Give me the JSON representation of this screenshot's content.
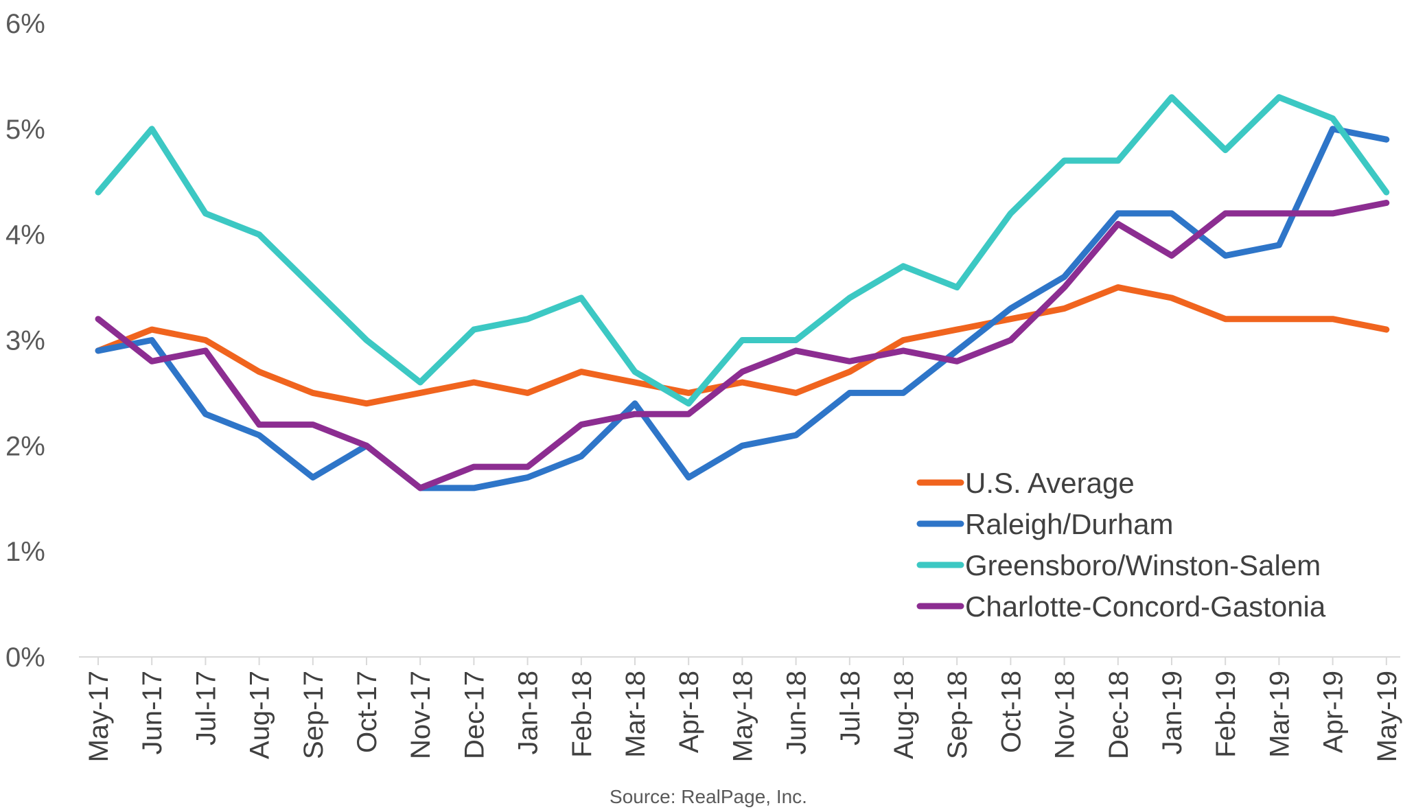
{
  "chart_data": {
    "type": "line",
    "title": "",
    "xlabel": "",
    "ylabel": "",
    "ylim": [
      0,
      6
    ],
    "yticks": [
      {
        "value": 0,
        "label": "0%"
      },
      {
        "value": 1,
        "label": "1%"
      },
      {
        "value": 2,
        "label": "2%"
      },
      {
        "value": 3,
        "label": "3%"
      },
      {
        "value": 4,
        "label": "4%"
      },
      {
        "value": 5,
        "label": "5%"
      },
      {
        "value": 6,
        "label": "6%"
      }
    ],
    "categories": [
      "May-17",
      "Jun-17",
      "Jul-17",
      "Aug-17",
      "Sep-17",
      "Oct-17",
      "Nov-17",
      "Dec-17",
      "Jan-18",
      "Feb-18",
      "Mar-18",
      "Apr-18",
      "May-18",
      "Jun-18",
      "Jul-18",
      "Aug-18",
      "Sep-18",
      "Oct-18",
      "Nov-18",
      "Dec-18",
      "Jan-19",
      "Feb-19",
      "Mar-19",
      "Apr-19",
      "May-19"
    ],
    "legend_position": "bottom-right",
    "grid": false,
    "series": [
      {
        "name": "U.S. Average",
        "color": "#F0641E",
        "values": [
          2.9,
          3.1,
          3.0,
          2.7,
          2.5,
          2.4,
          2.5,
          2.6,
          2.5,
          2.7,
          2.6,
          2.5,
          2.6,
          2.5,
          2.7,
          3.0,
          3.1,
          3.2,
          3.3,
          3.5,
          3.4,
          3.2,
          3.2,
          3.2,
          3.1
        ]
      },
      {
        "name": "Raleigh/Durham",
        "color": "#2E75C8",
        "values": [
          2.9,
          3.0,
          2.3,
          2.1,
          1.7,
          2.0,
          1.6,
          1.6,
          1.7,
          1.9,
          2.4,
          1.7,
          2.0,
          2.1,
          2.5,
          2.5,
          2.9,
          3.3,
          3.6,
          4.2,
          4.2,
          3.8,
          3.9,
          5.0,
          4.9
        ]
      },
      {
        "name": "Greensboro/Winston-Salem",
        "color": "#3CC8C3",
        "values": [
          4.4,
          5.0,
          4.2,
          4.0,
          3.5,
          3.0,
          2.6,
          3.1,
          3.2,
          3.4,
          2.7,
          2.4,
          3.0,
          3.0,
          3.4,
          3.7,
          3.5,
          4.2,
          4.7,
          4.7,
          5.3,
          4.8,
          5.3,
          5.1,
          4.4
        ]
      },
      {
        "name": "Charlotte-Concord-Gastonia",
        "color": "#8C2D91",
        "values": [
          3.2,
          2.8,
          2.9,
          2.2,
          2.2,
          2.0,
          1.6,
          1.8,
          1.8,
          2.2,
          2.3,
          2.3,
          2.7,
          2.9,
          2.8,
          2.9,
          2.8,
          3.0,
          3.5,
          4.1,
          3.8,
          4.2,
          4.2,
          4.2,
          4.3
        ]
      }
    ]
  },
  "source_note": "Source: RealPage, Inc."
}
